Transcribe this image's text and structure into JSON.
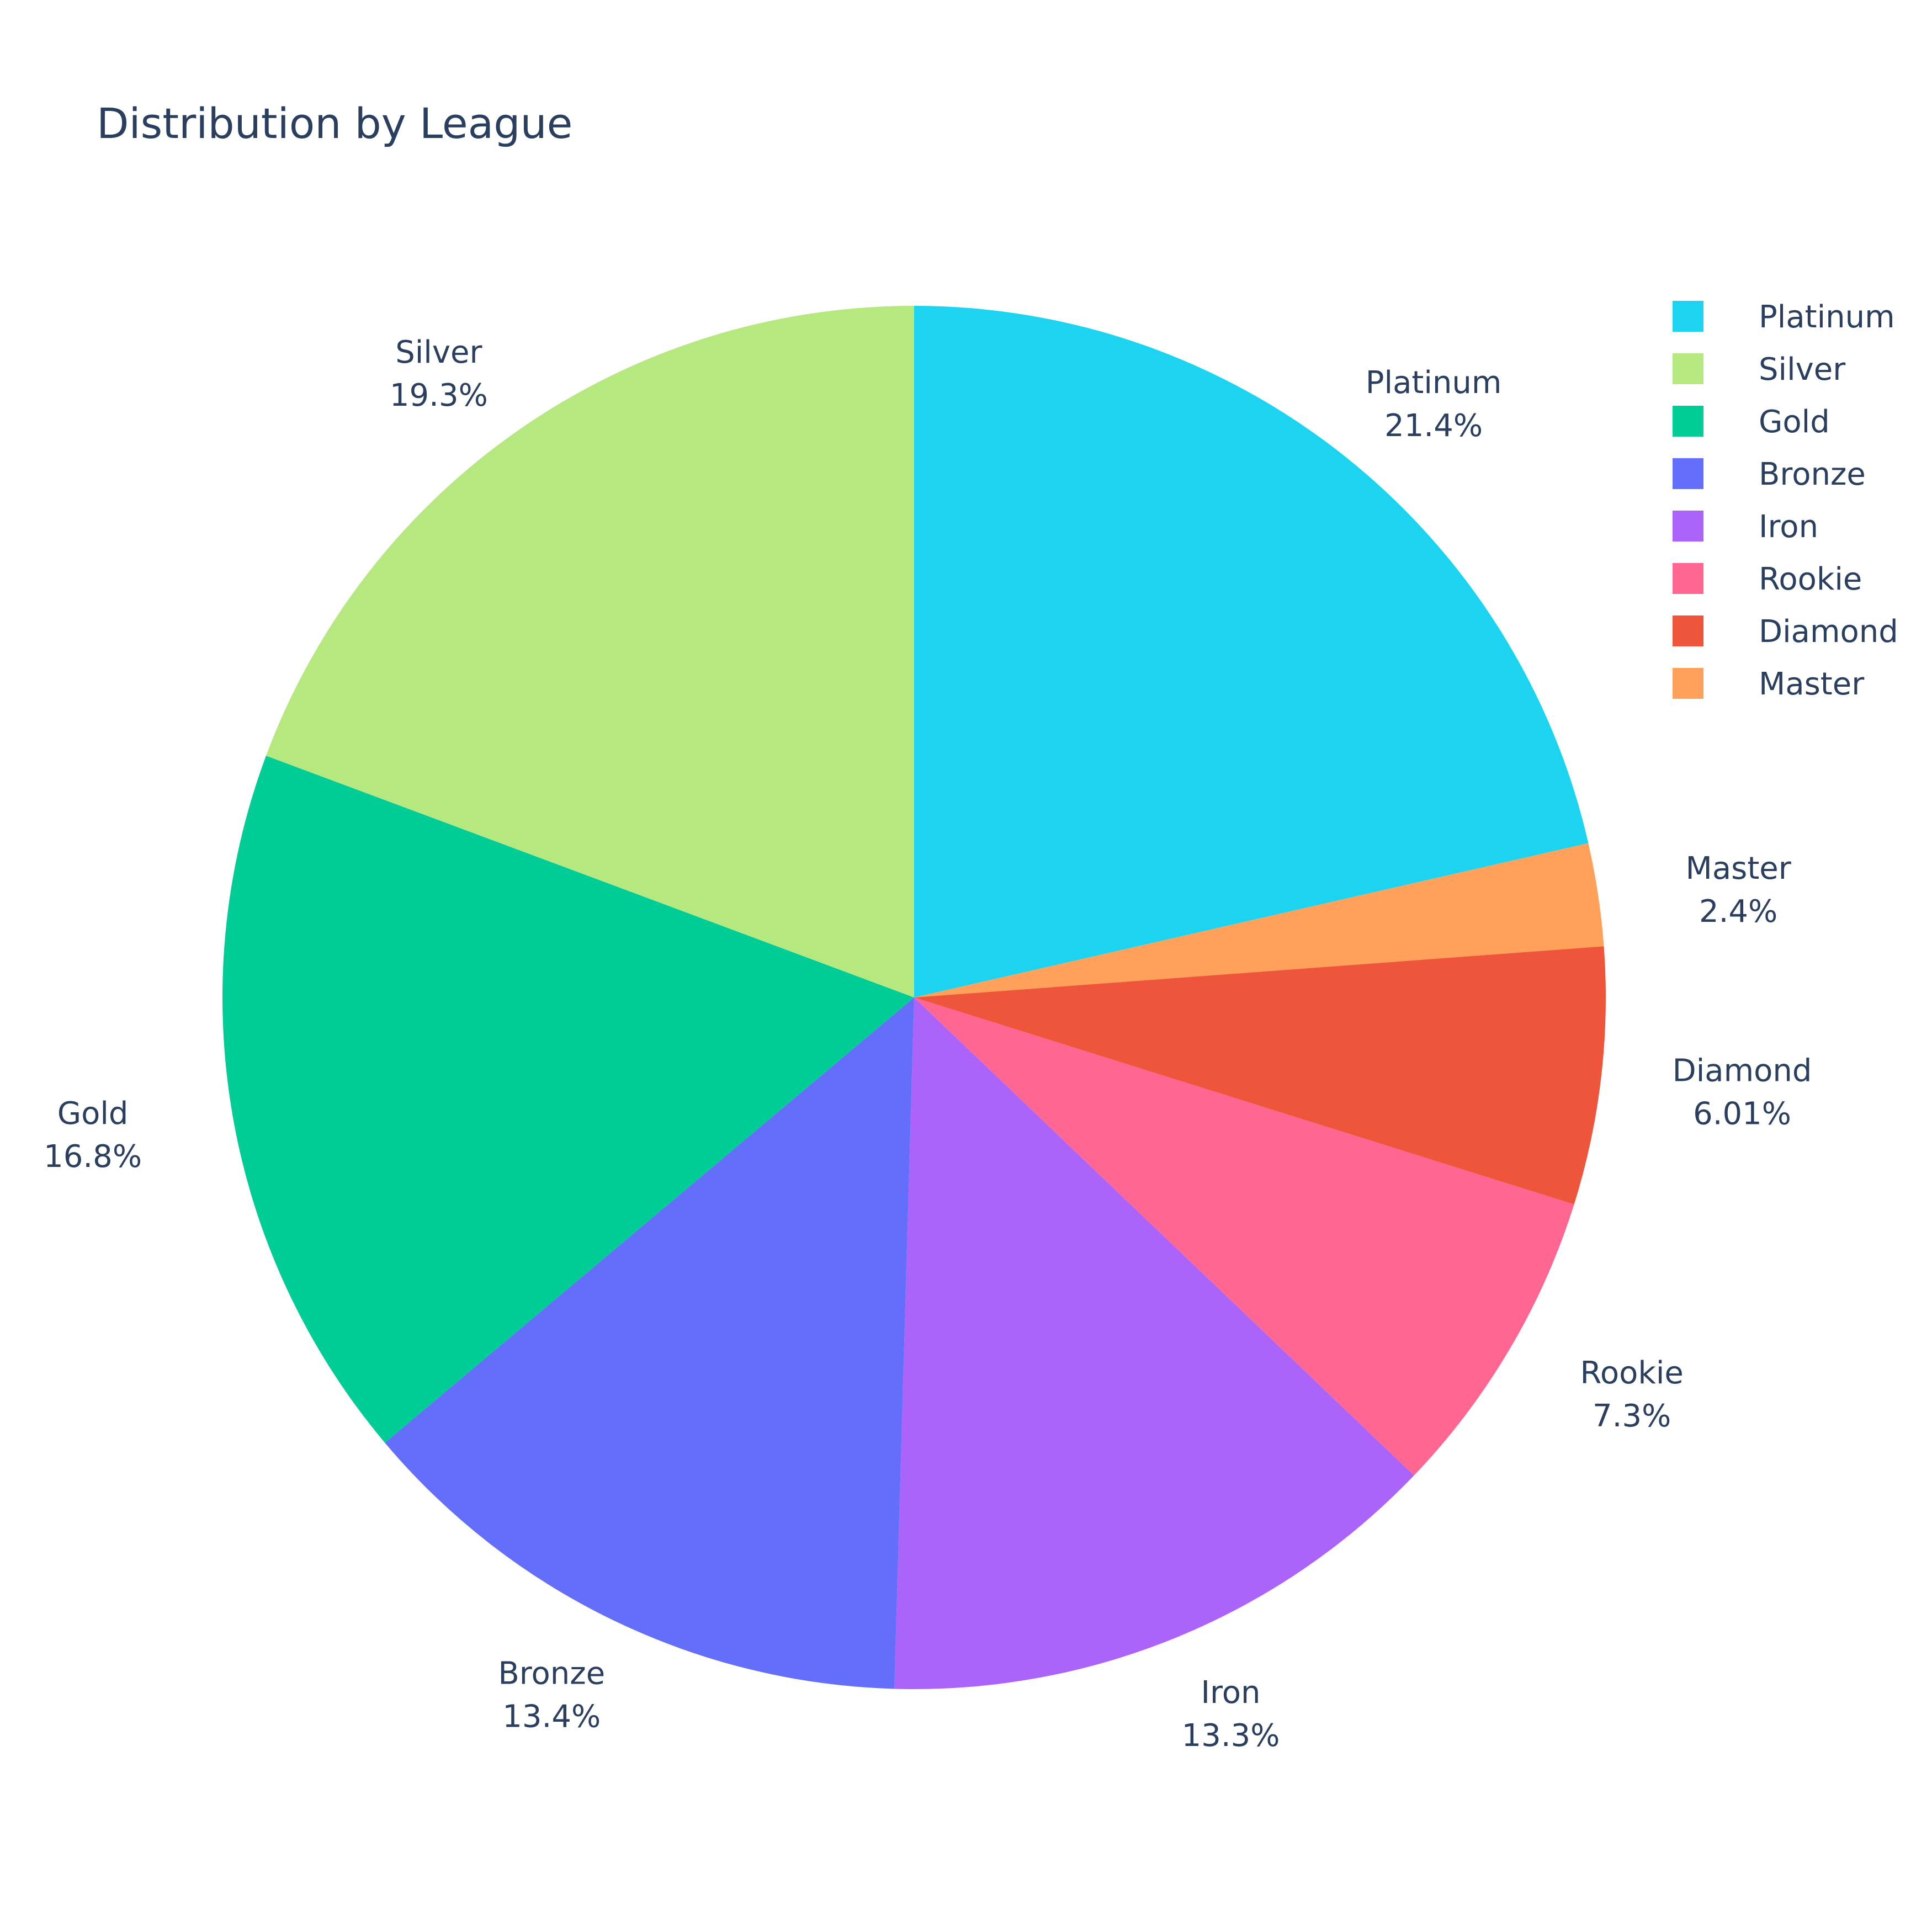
{
  "chart_data": {
    "type": "pie",
    "title": "Distribution by League",
    "direction": "clockwise",
    "start": "12 o'clock",
    "slices": [
      {
        "label": "Platinum",
        "percent_text": "21.4%",
        "value": 21.4,
        "color": "#1CD3F0"
      },
      {
        "label": "Master",
        "percent_text": "2.4%",
        "value": 2.4,
        "color": "#FFA15A"
      },
      {
        "label": "Diamond",
        "percent_text": "6.01%",
        "value": 6.01,
        "color": "#EF553B"
      },
      {
        "label": "Rookie",
        "percent_text": "7.3%",
        "value": 7.3,
        "color": "#FF6692"
      },
      {
        "label": "Iron",
        "percent_text": "13.3%",
        "value": 13.3,
        "color": "#AB63FA"
      },
      {
        "label": "Bronze",
        "percent_text": "13.4%",
        "value": 13.4,
        "color": "#636EFA"
      },
      {
        "label": "Gold",
        "percent_text": "16.8%",
        "value": 16.8,
        "color": "#00CC96"
      },
      {
        "label": "Silver",
        "percent_text": "19.3%",
        "value": 19.3,
        "color": "#B6E880"
      }
    ],
    "legend": {
      "placement": "top-right",
      "items": [
        {
          "label": "Platinum",
          "color": "#1CD3F0"
        },
        {
          "label": "Silver",
          "color": "#B6E880"
        },
        {
          "label": "Gold",
          "color": "#00CC96"
        },
        {
          "label": "Bronze",
          "color": "#636EFA"
        },
        {
          "label": "Iron",
          "color": "#AB63FA"
        },
        {
          "label": "Rookie",
          "color": "#FF6692"
        },
        {
          "label": "Diamond",
          "color": "#EF553B"
        },
        {
          "label": "Master",
          "color": "#FFA15A"
        }
      ]
    }
  }
}
